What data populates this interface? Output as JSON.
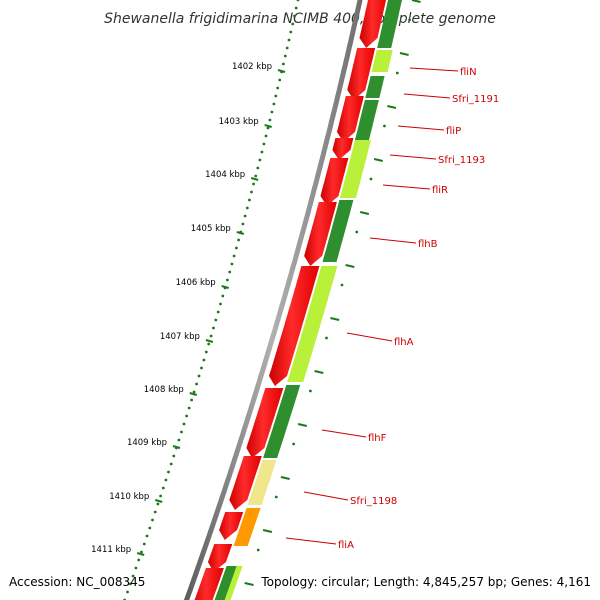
{
  "title": "Shewanella frigidimarina NCIMB 400, complete genome",
  "accession": "Accession: NC_008345",
  "topology": "Topology: circular; Length: 4,845,257 bp; Genes: 4,161",
  "kbp_labels": [
    "1402 kbp",
    "1403 kbp",
    "1404 kbp",
    "1405 kbp",
    "1406 kbp",
    "1407 kbp",
    "1408 kbp",
    "1409 kbp",
    "1410 kbp",
    "1411 kbp"
  ],
  "gene_labels": [
    "fliN",
    "Sfri_1191",
    "fliP",
    "Sfri_1193",
    "fliR",
    "flhB",
    "flhA",
    "flhF",
    "Sfri_1198",
    "fliA"
  ],
  "colors": {
    "backbone": "#8c8c8c",
    "cds_red": "#ff0000",
    "dark_green": "#2f8f2f",
    "light_green": "#b8f03a",
    "khaki": "#f0e68c",
    "orange": "#ff9900",
    "leader": "#cc0000",
    "tick": "#1a7a1a"
  }
}
